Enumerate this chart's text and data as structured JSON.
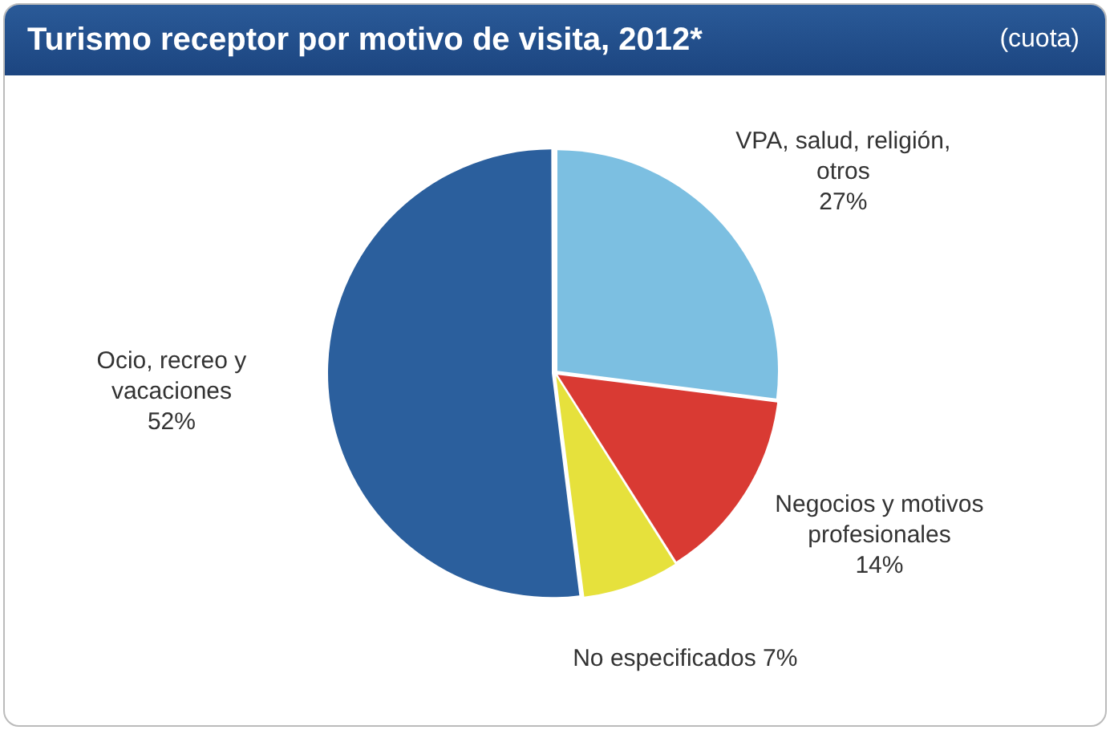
{
  "chart_data": {
    "type": "pie",
    "title": "Turismo receptor por motivo de visita, 2012*",
    "subtitle": "(cuota)",
    "categories": [
      "VPA, salud, religión, otros",
      "Negocios y motivos profesionales",
      "No especificados",
      "Ocio, recreo y vacaciones"
    ],
    "values": [
      27,
      14,
      7,
      52
    ],
    "colors": [
      "#7cbfe1",
      "#d93a33",
      "#e6e13c",
      "#2b5f9d"
    ],
    "value_labels": [
      "27%",
      "14%",
      "7%",
      "52%"
    ],
    "legend": false
  }
}
